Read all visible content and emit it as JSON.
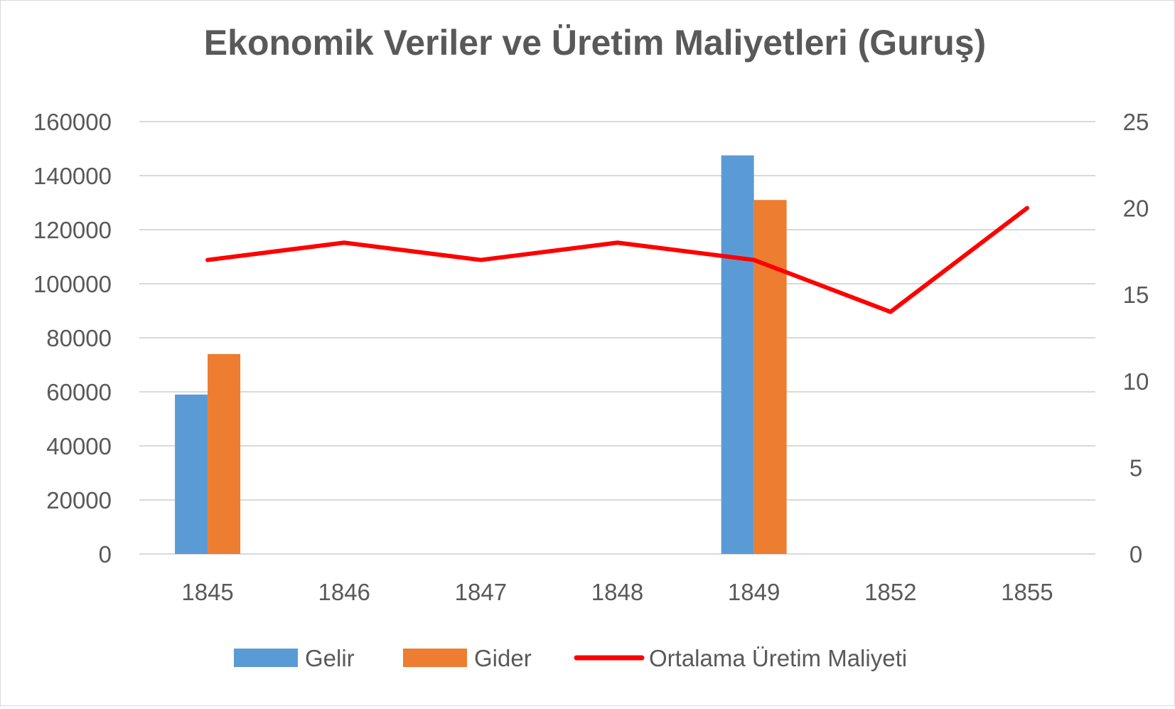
{
  "chart_data": {
    "type": "bar",
    "title": "Ekonomik Veriler ve Üretim Maliyetleri (Guruş)",
    "categories": [
      "1845",
      "1846",
      "1847",
      "1848",
      "1849",
      "1852",
      "1855"
    ],
    "series": [
      {
        "name": "Gelir",
        "type": "bar",
        "axis": "primary",
        "color": "#5B9BD5",
        "values": [
          59000,
          null,
          null,
          null,
          147500,
          null,
          null
        ]
      },
      {
        "name": "Gider",
        "type": "bar",
        "axis": "primary",
        "color": "#ED7D31",
        "values": [
          74000,
          null,
          null,
          null,
          131000,
          null,
          null
        ]
      },
      {
        "name": "Ortalama Üretim Maliyeti",
        "type": "line",
        "axis": "secondary",
        "color": "#FF0000",
        "values": [
          17,
          18,
          17,
          18,
          17,
          14,
          20
        ]
      }
    ],
    "y_primary": {
      "min": 0,
      "max": 160000,
      "ticks": [
        "0",
        "20000",
        "40000",
        "60000",
        "80000",
        "100000",
        "120000",
        "140000",
        "160000"
      ]
    },
    "y_secondary": {
      "min": 0,
      "max": 25,
      "ticks": [
        "0",
        "5",
        "10",
        "15",
        "20",
        "25"
      ]
    },
    "grid": true,
    "legend_position": "bottom"
  }
}
